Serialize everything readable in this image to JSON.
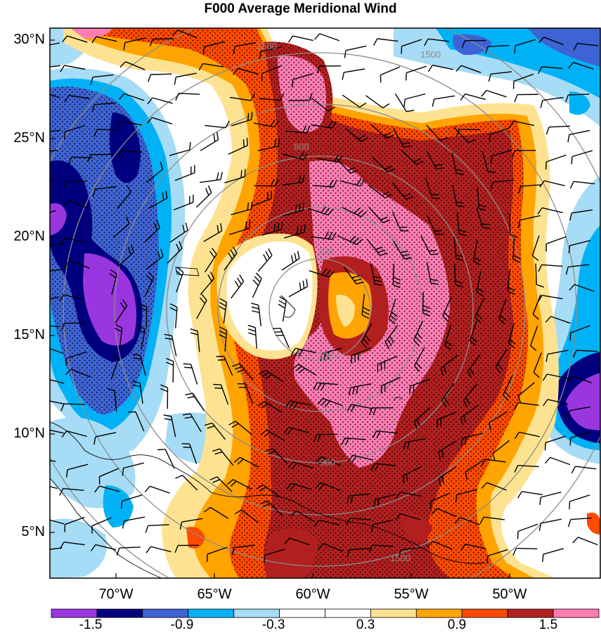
{
  "title": "F000 Average Meridional Wind",
  "lat_labels": [
    "30°N",
    "25°N",
    "20°N",
    "15°N",
    "10°N",
    "5°N"
  ],
  "lon_labels": [
    "70°W",
    "65°W",
    "60°W",
    "55°W",
    "50°W"
  ],
  "colorbar": {
    "colors": [
      "#9a36e0",
      "#00007e",
      "#3e63d4",
      "#00b2f5",
      "#a6dcf5",
      "#ffffff",
      "#ffffff",
      "#fde391",
      "#ffa400",
      "#ff4a00",
      "#b21f1f",
      "#ff7cb3"
    ],
    "labels": [
      "-1.5",
      "-0.9",
      "-0.3",
      "0.3",
      "0.9",
      "1.5"
    ]
  },
  "range_ring_labels": [
    "300",
    "900",
    "1500"
  ],
  "colors": {
    "ring": "#8c8c8c",
    "barb": "#000000",
    "coast": "#000000"
  }
}
